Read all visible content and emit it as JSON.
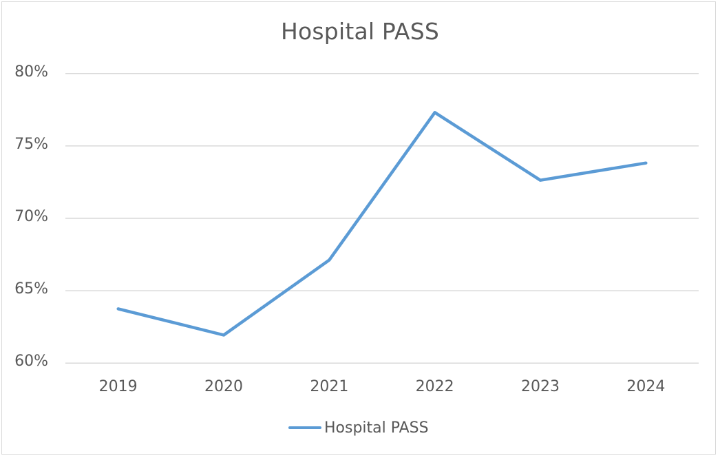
{
  "chart_data": {
    "type": "line",
    "title": "Hospital PASS",
    "xlabel": "",
    "ylabel": "",
    "categories": [
      "2019",
      "2020",
      "2021",
      "2022",
      "2023",
      "2024"
    ],
    "series": [
      {
        "name": "Hospital PASS",
        "color": "#5b9bd5",
        "values": [
          63.75,
          61.94,
          67.12,
          77.31,
          72.63,
          73.82
        ]
      }
    ],
    "y_ticks": [
      "60%",
      "65%",
      "70%",
      "75%",
      "80%"
    ],
    "ylim": [
      60,
      80
    ],
    "y_unit": "%",
    "grid": {
      "horizontal": true,
      "vertical": false,
      "color": "#d9d9d9"
    },
    "legend_position": "bottom"
  }
}
